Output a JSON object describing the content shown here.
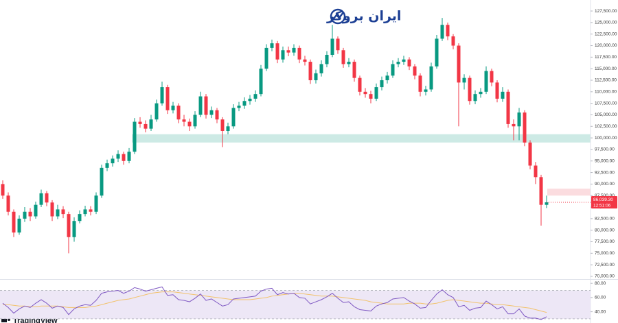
{
  "logo": {
    "text": "ایران بروکر"
  },
  "chart_data": {
    "type": "candlestick",
    "up_color": "#089981",
    "down_color": "#f23645",
    "open": [
      90000,
      87500,
      84000,
      79500,
      82500,
      84000,
      83000,
      85500,
      88000,
      86000,
      83000,
      84500,
      83500,
      78500,
      82000,
      83500,
      84500,
      84000,
      87500,
      93500,
      94500,
      95500,
      96500,
      95000,
      97000,
      103500,
      103000,
      102000,
      104000,
      107500,
      111000,
      106000,
      107000,
      104000,
      103500,
      102500,
      105000,
      109000,
      105000,
      106000,
      104000,
      101500,
      102500,
      106500,
      107000,
      108000,
      108500,
      109500,
      115000,
      119500,
      120500,
      117000,
      119000,
      118500,
      119500,
      117000,
      116500,
      112500,
      114000,
      116000,
      118000,
      121500,
      119000,
      116000,
      116500,
      113000,
      110000,
      109500,
      108500,
      111000,
      112500,
      113500,
      116000,
      116500,
      117000,
      115500,
      113500,
      110000,
      110500,
      115500,
      121500,
      124500,
      122000,
      120000,
      112000,
      113000,
      108000,
      109500,
      110000,
      114500,
      112000,
      108500,
      110000,
      103000,
      102500,
      105500,
      99000,
      94000,
      91500,
      85500
    ],
    "high": [
      90800,
      88200,
      84500,
      83200,
      85000,
      84800,
      86200,
      88800,
      88500,
      86500,
      85500,
      85200,
      84000,
      82800,
      84300,
      85300,
      85200,
      88200,
      94200,
      95300,
      96200,
      97300,
      97000,
      97800,
      104300,
      104500,
      103800,
      105000,
      108300,
      112200,
      111500,
      107800,
      107500,
      105000,
      104200,
      105800,
      110000,
      109500,
      106800,
      106500,
      104500,
      103300,
      107300,
      107800,
      108800,
      109300,
      110300,
      115800,
      120300,
      121300,
      121000,
      119800,
      119800,
      120300,
      120000,
      117800,
      117000,
      114800,
      116800,
      118800,
      124500,
      122000,
      119500,
      117300,
      117000,
      113500,
      110800,
      110200,
      111800,
      113300,
      114300,
      116800,
      117300,
      117800,
      117500,
      116000,
      114000,
      111300,
      116300,
      122300,
      126000,
      125000,
      122500,
      120500,
      113800,
      113500,
      110300,
      110800,
      115500,
      115000,
      112500,
      111000,
      110500,
      104000,
      106500,
      106000,
      99500,
      94800,
      92000,
      87500
    ],
    "low": [
      86800,
      83200,
      78500,
      79000,
      81800,
      82000,
      82500,
      85000,
      85200,
      82000,
      82400,
      82600,
      75000,
      77500,
      81500,
      83000,
      83200,
      83500,
      87000,
      92800,
      93800,
      94800,
      94200,
      94500,
      96500,
      102200,
      101200,
      101500,
      103500,
      107000,
      105200,
      105300,
      103200,
      102500,
      101500,
      102000,
      104500,
      104200,
      104300,
      103200,
      98000,
      100800,
      102000,
      105800,
      106300,
      107200,
      107800,
      109000,
      114500,
      118800,
      116200,
      116300,
      117700,
      117800,
      116200,
      115700,
      111700,
      111800,
      113300,
      115300,
      117500,
      118200,
      115200,
      115300,
      112200,
      109200,
      108700,
      107500,
      108000,
      110300,
      111800,
      113000,
      115300,
      115800,
      114700,
      112700,
      109000,
      109200,
      110000,
      115000,
      121000,
      121200,
      119200,
      102500,
      110500,
      107200,
      107300,
      108700,
      109500,
      111200,
      107700,
      107800,
      102200,
      99500,
      99500,
      98200,
      93200,
      90000,
      81000,
      84800
    ],
    "close": [
      87500,
      84000,
      79500,
      82500,
      84000,
      83000,
      85500,
      88000,
      86000,
      83000,
      84500,
      83500,
      78500,
      82000,
      83500,
      84500,
      84000,
      87500,
      93500,
      94500,
      95500,
      96500,
      95000,
      97000,
      103500,
      103000,
      102000,
      104000,
      107500,
      111000,
      106000,
      107000,
      104000,
      103500,
      102500,
      105000,
      109000,
      105000,
      106000,
      104000,
      101500,
      102500,
      106500,
      107000,
      108000,
      108500,
      109500,
      115000,
      119500,
      120500,
      117000,
      119000,
      118500,
      119500,
      117000,
      116500,
      112500,
      114000,
      116000,
      118000,
      121500,
      119000,
      116000,
      116500,
      113000,
      110000,
      109500,
      108500,
      111000,
      112500,
      113500,
      116000,
      116500,
      117000,
      115500,
      113500,
      110000,
      110500,
      115500,
      121500,
      124500,
      122000,
      120000,
      112000,
      113000,
      108000,
      109500,
      110000,
      114500,
      112000,
      108500,
      110000,
      103000,
      102500,
      105500,
      99000,
      94000,
      91500,
      85500,
      86039.3
    ],
    "ylim": [
      69400,
      128400
    ],
    "yticks": [
      {
        "value": 70000,
        "label": "70,000.00"
      },
      {
        "value": 72500,
        "label": "72,500.00"
      },
      {
        "value": 75000,
        "label": "75,000.00"
      },
      {
        "value": 77500,
        "label": "77,500.00"
      },
      {
        "value": 80000,
        "label": "80,000.00"
      },
      {
        "value": 82500,
        "label": "82,500.00"
      },
      {
        "value": 85000,
        "label": "85,000.00"
      },
      {
        "value": 87500,
        "label": "87,500.00"
      },
      {
        "value": 90000,
        "label": "90,000.00"
      },
      {
        "value": 92500,
        "label": "92,500.00"
      },
      {
        "value": 95000,
        "label": "95,000.00"
      },
      {
        "value": 97500,
        "label": "97,500.00"
      },
      {
        "value": 100000,
        "label": "100,000.00"
      },
      {
        "value": 102500,
        "label": "102,500.00"
      },
      {
        "value": 105000,
        "label": "105,000.00"
      },
      {
        "value": 107500,
        "label": "107,500.00"
      },
      {
        "value": 110000,
        "label": "110,000.00"
      },
      {
        "value": 112500,
        "label": "112,500.00"
      },
      {
        "value": 115000,
        "label": "115,000.00"
      },
      {
        "value": 117500,
        "label": "117,500.00"
      },
      {
        "value": 120000,
        "label": "120,000.00"
      },
      {
        "value": 122500,
        "label": "122,500.00"
      },
      {
        "value": 125000,
        "label": "125,000.00"
      },
      {
        "value": 127500,
        "label": "127,500.00"
      }
    ],
    "zones": [
      {
        "from": 99000,
        "to": 100800,
        "color": "#cdeae5"
      },
      {
        "from": 87500,
        "to": 89000,
        "color": "#fbdcdf"
      }
    ],
    "last_price": {
      "value": 86039.3,
      "label": "86,039.30",
      "countdown": "12:51:06",
      "color": "#f23645"
    },
    "rsi": {
      "color": "#7e57c2",
      "ma_color": "#f2c26b",
      "band_color": "#ede7f6",
      "band": [
        30,
        70
      ],
      "ylim": [
        28,
        85
      ],
      "yticks": [
        {
          "value": 80,
          "label": "80.00"
        },
        {
          "value": 60,
          "label": "60.00"
        },
        {
          "value": 40,
          "label": "40.00"
        }
      ],
      "values": [
        52,
        46,
        38,
        44,
        48,
        46,
        52,
        57,
        52,
        45,
        48,
        46,
        36,
        44,
        48,
        50,
        49,
        56,
        66,
        68,
        69,
        70,
        66,
        69,
        74,
        72,
        69,
        71,
        73,
        75,
        63,
        64,
        57,
        56,
        54,
        59,
        65,
        56,
        58,
        53,
        48,
        50,
        58,
        59,
        60,
        61,
        62,
        69,
        72,
        73,
        64,
        67,
        65,
        66,
        60,
        59,
        51,
        54,
        57,
        61,
        66,
        59,
        53,
        54,
        47,
        43,
        42,
        41,
        48,
        51,
        53,
        58,
        59,
        60,
        55,
        51,
        45,
        46,
        56,
        65,
        71,
        64,
        60,
        47,
        49,
        42,
        45,
        46,
        55,
        50,
        44,
        47,
        37,
        37,
        44,
        34,
        31,
        31,
        29,
        33
      ],
      "ma": [
        50,
        50,
        49,
        48,
        48,
        47,
        47,
        48,
        48,
        48,
        48,
        47,
        46,
        46,
        46,
        46,
        47,
        48,
        50,
        52,
        54,
        56,
        57,
        58,
        60,
        62,
        64,
        66,
        67,
        68,
        68,
        68,
        67,
        66,
        65,
        64,
        63,
        62,
        61,
        60,
        59,
        58,
        57,
        57,
        57,
        57,
        58,
        59,
        60,
        62,
        63,
        64,
        65,
        66,
        66,
        65,
        64,
        63,
        62,
        62,
        62,
        61,
        60,
        59,
        58,
        57,
        56,
        54,
        53,
        52,
        51,
        51,
        51,
        51,
        52,
        52,
        52,
        51,
        51,
        52,
        54,
        56,
        57,
        56,
        55,
        54,
        53,
        52,
        52,
        51,
        50,
        50,
        49,
        48,
        47,
        46,
        45,
        43,
        41,
        39
      ]
    }
  },
  "footer": {
    "brand": "TradingView"
  }
}
